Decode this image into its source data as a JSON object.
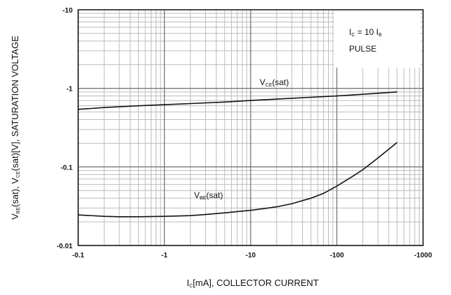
{
  "chart_data": {
    "type": "line",
    "xscale": "log",
    "yscale": "log",
    "xlim": [
      -0.1,
      -1000
    ],
    "ylim": [
      -0.01,
      -10
    ],
    "xticks": [
      "-0.1",
      "-1",
      "-10",
      "-100",
      "-1000"
    ],
    "yticks": [
      "-0.01",
      "-0.1",
      "-1",
      "-10"
    ],
    "xlabel": {
      "pre": "I",
      "sub": "C",
      "post": "[mA], COLLECTOR CURRENT"
    },
    "ylabel": {
      "parts": [
        {
          "t": "V",
          "sub": false
        },
        {
          "t": "BE",
          "sub": true
        },
        {
          "t": "(sat), V",
          "sub": false
        },
        {
          "t": "CE",
          "sub": true
        },
        {
          "t": "(sat)[V], SATURATION VOLTAGE",
          "sub": false
        }
      ]
    },
    "grid": true,
    "annotation": {
      "line1": {
        "pre": "I",
        "sub1": "C",
        "mid": " = 10 I",
        "sub2": "B"
      },
      "line2": "PULSE"
    },
    "series": [
      {
        "name": "VCE(sat)",
        "label": {
          "pre": "V",
          "sub": "CE",
          "post": "(sat)"
        },
        "x": [
          0.1,
          0.2,
          0.5,
          1,
          2,
          5,
          10,
          20,
          50,
          100,
          200,
          500
        ],
        "y": [
          0.54,
          0.57,
          0.6,
          0.62,
          0.64,
          0.67,
          0.7,
          0.73,
          0.77,
          0.8,
          0.84,
          0.9
        ]
      },
      {
        "name": "VBE(sat)",
        "label": {
          "pre": "V",
          "sub": "BE",
          "post": "(sat)"
        },
        "x": [
          0.1,
          0.2,
          0.3,
          0.5,
          1,
          2,
          3,
          5,
          10,
          20,
          30,
          50,
          70,
          100,
          150,
          200,
          300,
          500
        ],
        "y": [
          0.0245,
          0.0235,
          0.0232,
          0.0232,
          0.0235,
          0.024,
          0.0248,
          0.026,
          0.028,
          0.031,
          0.034,
          0.04,
          0.046,
          0.057,
          0.075,
          0.092,
          0.13,
          0.205
        ]
      }
    ]
  }
}
